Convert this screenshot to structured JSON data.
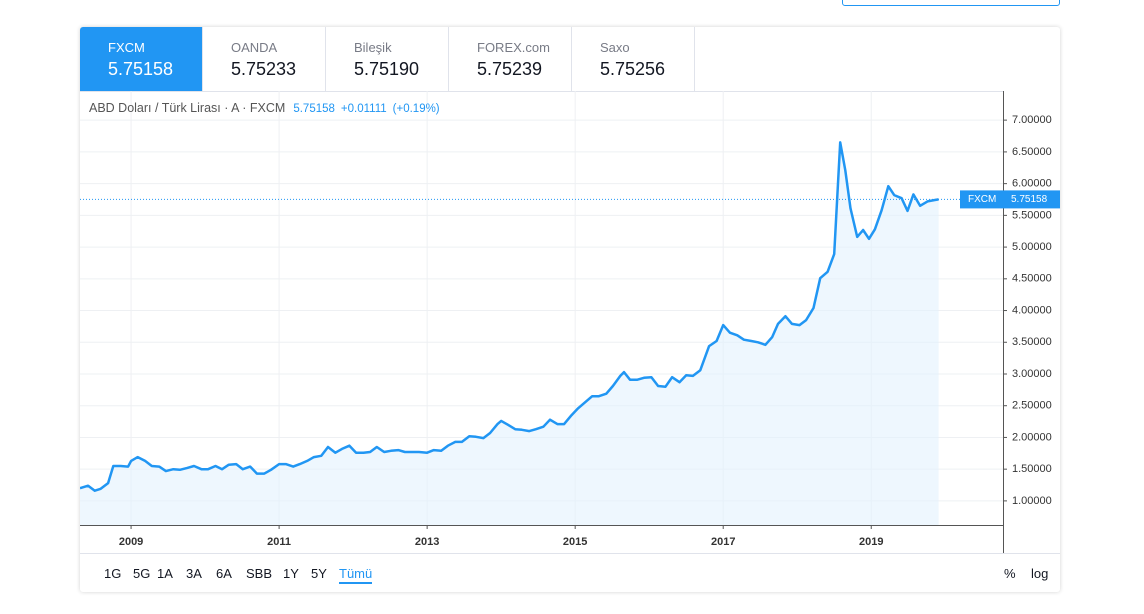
{
  "tabs": [
    {
      "name": "FXCM",
      "price": "5.75158"
    },
    {
      "name": "OANDA",
      "price": "5.75233"
    },
    {
      "name": "Bileşik",
      "price": "5.75190"
    },
    {
      "name": "FOREX.com",
      "price": "5.75239"
    },
    {
      "name": "Saxo",
      "price": "5.75256"
    }
  ],
  "legend": {
    "symbol": "ABD Doları / Türk Lirası · A · FXCM",
    "change": "+0.01111",
    "change_pct": "(+0.19%)"
  },
  "toolbar": {
    "ranges": [
      "1G",
      "5G",
      "1A",
      "3A",
      "6A",
      "SBB",
      "1Y",
      "5Y",
      "Tümü"
    ],
    "active": 8,
    "percent": "%",
    "log": "log"
  },
  "chart_data": {
    "type": "area",
    "color": "#2196f3",
    "fill": "#e3f2fd",
    "grid": true,
    "log_scale": false,
    "xlim": [
      2008.31,
      2020.78
    ],
    "xticks": [
      2009,
      2011,
      2013,
      2015,
      2017,
      2019
    ],
    "ylim": [
      0.62,
      7.46
    ],
    "yticks": [
      {
        "value": 1,
        "label": "1.00000"
      },
      {
        "value": 1.5,
        "label": "1.50000"
      },
      {
        "value": 2,
        "label": "2.00000"
      },
      {
        "value": 2.5,
        "label": "2.50000"
      },
      {
        "value": 3,
        "label": "3.00000"
      },
      {
        "value": 3.5,
        "label": "3.50000"
      },
      {
        "value": 4,
        "label": "4.00000"
      },
      {
        "value": 4.5,
        "label": "4.50000"
      },
      {
        "value": 5,
        "label": "5.00000"
      },
      {
        "value": 5.5,
        "label": "5.50000"
      },
      {
        "value": 6,
        "label": "6.00000"
      },
      {
        "value": 6.5,
        "label": "6.50000"
      },
      {
        "value": 7,
        "label": "7.00000"
      }
    ],
    "x": [
      2008.31,
      2008.42,
      2008.51,
      2008.59,
      2008.69,
      2008.76,
      2008.86,
      2008.96,
      2009.0,
      2009.09,
      2009.19,
      2009.28,
      2009.38,
      2009.47,
      2009.57,
      2009.66,
      2009.76,
      2009.85,
      2009.95,
      2010.04,
      2010.14,
      2010.23,
      2010.32,
      2010.42,
      2010.51,
      2010.61,
      2010.7,
      2010.8,
      2010.89,
      2011.0,
      2011.09,
      2011.19,
      2011.28,
      2011.38,
      2011.47,
      2011.57,
      2011.66,
      2011.76,
      2011.85,
      2011.95,
      2012.04,
      2012.14,
      2012.23,
      2012.32,
      2012.42,
      2012.51,
      2012.61,
      2012.7,
      2012.8,
      2012.89,
      2013.0,
      2013.09,
      2013.19,
      2013.28,
      2013.38,
      2013.47,
      2013.57,
      2013.66,
      2013.76,
      2013.85,
      2013.95,
      2014.0,
      2014.09,
      2014.19,
      2014.28,
      2014.38,
      2014.47,
      2014.57,
      2014.66,
      2014.76,
      2014.85,
      2014.95,
      2015.04,
      2015.14,
      2015.23,
      2015.32,
      2015.42,
      2015.51,
      2015.61,
      2015.66,
      2015.74,
      2015.84,
      2015.93,
      2016.03,
      2016.12,
      2016.22,
      2016.31,
      2016.41,
      2016.5,
      2016.59,
      2016.69,
      2016.81,
      2016.91,
      2017.0,
      2017.09,
      2017.19,
      2017.28,
      2017.38,
      2017.47,
      2017.57,
      2017.66,
      2017.74,
      2017.84,
      2017.93,
      2018.03,
      2018.12,
      2018.22,
      2018.31,
      2018.41,
      2018.5,
      2018.58,
      2018.65,
      2018.72,
      2018.81,
      2018.89,
      2018.97,
      2019.05,
      2019.14,
      2019.23,
      2019.31,
      2019.41,
      2019.49,
      2019.57,
      2019.66,
      2019.76,
      2019.85,
      2019.91
    ],
    "values": [
      1.2,
      1.24,
      1.16,
      1.19,
      1.28,
      1.55,
      1.55,
      1.54,
      1.63,
      1.69,
      1.63,
      1.55,
      1.54,
      1.47,
      1.5,
      1.49,
      1.52,
      1.55,
      1.5,
      1.5,
      1.55,
      1.5,
      1.57,
      1.58,
      1.5,
      1.54,
      1.43,
      1.43,
      1.49,
      1.58,
      1.58,
      1.54,
      1.58,
      1.63,
      1.69,
      1.71,
      1.85,
      1.76,
      1.82,
      1.87,
      1.76,
      1.76,
      1.77,
      1.85,
      1.77,
      1.79,
      1.8,
      1.77,
      1.77,
      1.77,
      1.76,
      1.8,
      1.79,
      1.87,
      1.93,
      1.93,
      2.02,
      2.01,
      1.99,
      2.07,
      2.21,
      2.26,
      2.2,
      2.13,
      2.12,
      2.1,
      2.13,
      2.17,
      2.28,
      2.21,
      2.21,
      2.35,
      2.46,
      2.56,
      2.65,
      2.65,
      2.69,
      2.81,
      2.97,
      3.03,
      2.91,
      2.91,
      2.94,
      2.95,
      2.81,
      2.8,
      2.95,
      2.87,
      2.98,
      2.97,
      3.06,
      3.44,
      3.52,
      3.77,
      3.65,
      3.61,
      3.54,
      3.52,
      3.5,
      3.46,
      3.58,
      3.79,
      3.91,
      3.79,
      3.77,
      3.85,
      4.04,
      4.51,
      4.61,
      4.89,
      6.65,
      6.21,
      5.61,
      5.16,
      5.27,
      5.13,
      5.28,
      5.58,
      5.96,
      5.82,
      5.77,
      5.57,
      5.83,
      5.65,
      5.72,
      5.74,
      5.75158
    ]
  }
}
